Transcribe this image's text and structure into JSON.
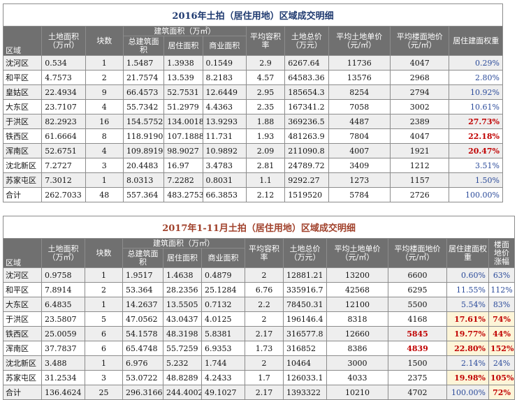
{
  "table1": {
    "title": "2016年土拍（居住用地）区域成交明细",
    "headers": {
      "area": "区域",
      "land_area": "土地面积（万㎡）",
      "blocks": "块数",
      "build_group": "建筑面积（万㎡）",
      "build_total": "总建筑面积",
      "build_res": "居住面积",
      "build_com": "商业面积",
      "far": "平均容积率",
      "total_price": "土地总价（万元）",
      "land_unit": "平均土地单价（元/㎡）",
      "floor_price": "平均楼面地价（元/㎡）",
      "weight": "居住建面权重"
    },
    "rows": [
      {
        "area": "沈河区",
        "land": "0.534",
        "blocks": "1",
        "total": "1.5487",
        "res": "1.3938",
        "com": "0.1549",
        "far": "2.9",
        "price": "6267.64",
        "unit": "11736",
        "floor": "4047",
        "weight": "0.29%",
        "hot": false
      },
      {
        "area": "和平区",
        "land": "4.7573",
        "blocks": "2",
        "total": "21.7574",
        "res": "13.539",
        "com": "8.2183",
        "far": "4.57",
        "price": "64583.36",
        "unit": "13576",
        "floor": "2968",
        "weight": "2.80%",
        "hot": false
      },
      {
        "area": "皇姑区",
        "land": "22.4934",
        "blocks": "9",
        "total": "66.4573",
        "res": "52.7531",
        "com": "12.6449",
        "far": "2.95",
        "price": "185654.3",
        "unit": "8254",
        "floor": "2794",
        "weight": "10.92%",
        "hot": false
      },
      {
        "area": "大东区",
        "land": "23.7107",
        "blocks": "4",
        "total": "55.7342",
        "res": "51.2979",
        "com": "4.4363",
        "far": "2.35",
        "price": "167341.2",
        "unit": "7058",
        "floor": "3002",
        "weight": "10.61%",
        "hot": false
      },
      {
        "area": "于洪区",
        "land": "82.2923",
        "blocks": "16",
        "total": "154.5752",
        "res": "134.0018",
        "com": "13.9293",
        "far": "1.88",
        "price": "369236.5",
        "unit": "4487",
        "floor": "2389",
        "weight": "27.73%",
        "hot": true
      },
      {
        "area": "铁西区",
        "land": "61.6664",
        "blocks": "8",
        "total": "118.9190",
        "res": "107.1888",
        "com": "11.731",
        "far": "1.93",
        "price": "481263.9",
        "unit": "7804",
        "floor": "4047",
        "weight": "22.18%",
        "hot": true
      },
      {
        "area": "浑南区",
        "land": "52.6751",
        "blocks": "4",
        "total": "109.8919",
        "res": "98.9027",
        "com": "10.9892",
        "far": "2.09",
        "price": "211090.8",
        "unit": "4007",
        "floor": "1921",
        "weight": "20.47%",
        "hot": true
      },
      {
        "area": "沈北新区",
        "land": "7.2727",
        "blocks": "3",
        "total": "20.4483",
        "res": "16.97",
        "com": "3.4783",
        "far": "2.81",
        "price": "24789.72",
        "unit": "3409",
        "floor": "1212",
        "weight": "3.51%",
        "hot": false
      },
      {
        "area": "苏家屯区",
        "land": "7.3012",
        "blocks": "1",
        "total": "8.0313",
        "res": "7.2282",
        "com": "0.8031",
        "far": "1.1",
        "price": "9292.27",
        "unit": "1273",
        "floor": "1157",
        "weight": "1.50%",
        "hot": false
      },
      {
        "area": "合计",
        "land": "262.7033",
        "blocks": "48",
        "total": "557.364",
        "res": "483.2753",
        "com": "66.3853",
        "far": "2.12",
        "price": "1519520",
        "unit": "5784",
        "floor": "2726",
        "weight": "100.00%",
        "hot": false
      }
    ]
  },
  "table2": {
    "title": "2017年1-11月土拍（居住用地）区域成交明细",
    "headers": {
      "area": "区域",
      "land_area": "土地面积（万㎡）",
      "blocks": "块数",
      "build_group": "建筑面积（万㎡）",
      "build_total": "总建筑面积",
      "build_res": "居住面积",
      "build_com": "商业面积",
      "far": "平均容积率",
      "total_price": "土地总价（万元）",
      "land_unit": "平均土地单价（元/㎡）",
      "floor_price": "平均楼面地价（元/㎡）",
      "weight": "居住建面权重",
      "change": "楼面地价涨幅"
    },
    "rows": [
      {
        "area": "沈河区",
        "land": "0.9758",
        "blocks": "1",
        "total": "1.9517",
        "res": "1.4638",
        "com": "0.4879",
        "far": "2",
        "price": "12881.21",
        "unit": "13200",
        "floor": "6600",
        "weight": "0.60%",
        "chg": "63%",
        "hot": false,
        "floor_hot": false
      },
      {
        "area": "和平区",
        "land": "7.8914",
        "blocks": "2",
        "total": "53.364",
        "res": "28.2356",
        "com": "25.1284",
        "far": "6.76",
        "price": "335916.7",
        "unit": "42568",
        "floor": "6295",
        "weight": "11.55%",
        "chg": "112%",
        "hot": false,
        "floor_hot": false
      },
      {
        "area": "大东区",
        "land": "6.4835",
        "blocks": "1",
        "total": "14.2637",
        "res": "13.5505",
        "com": "0.7132",
        "far": "2.2",
        "price": "78450.31",
        "unit": "12100",
        "floor": "5500",
        "weight": "5.54%",
        "chg": "83%",
        "hot": false,
        "floor_hot": false
      },
      {
        "area": "于洪区",
        "land": "23.5807",
        "blocks": "5",
        "total": "47.0562",
        "res": "43.0437",
        "com": "4.0125",
        "far": "2",
        "price": "196146.4",
        "unit": "8318",
        "floor": "4168",
        "weight": "17.61%",
        "chg": "74%",
        "hot": true,
        "floor_hot": false
      },
      {
        "area": "铁西区",
        "land": "25.0059",
        "blocks": "6",
        "total": "54.1578",
        "res": "48.3198",
        "com": "5.8381",
        "far": "2.17",
        "price": "316577.8",
        "unit": "12660",
        "floor": "5845",
        "weight": "19.77%",
        "chg": "44%",
        "hot": true,
        "floor_hot": true
      },
      {
        "area": "浑南区",
        "land": "37.7837",
        "blocks": "6",
        "total": "65.4748",
        "res": "55.7259",
        "com": "6.9353",
        "far": "1.73",
        "price": "316852",
        "unit": "8386",
        "floor": "4839",
        "weight": "22.80%",
        "chg": "152%",
        "hot": true,
        "floor_hot": true
      },
      {
        "area": "沈北新区",
        "land": "3.488",
        "blocks": "1",
        "total": "6.976",
        "res": "5.232",
        "com": "1.744",
        "far": "2",
        "price": "10464",
        "unit": "3000",
        "floor": "1500",
        "weight": "2.14%",
        "chg": "24%",
        "hot": false,
        "floor_hot": false
      },
      {
        "area": "苏家屯区",
        "land": "31.2534",
        "blocks": "3",
        "total": "53.0722",
        "res": "48.8289",
        "com": "4.2433",
        "far": "1.7",
        "price": "126033.1",
        "unit": "4033",
        "floor": "2375",
        "weight": "19.98%",
        "chg": "105%",
        "hot": true,
        "floor_hot": false
      },
      {
        "area": "合计",
        "land": "136.4624",
        "blocks": "25",
        "total": "296.3166",
        "res": "244.4002",
        "com": "49.1027",
        "far": "2.17",
        "price": "1393322",
        "unit": "10210",
        "floor": "4702",
        "weight": "100.00%",
        "chg": "72%",
        "hot": false,
        "floor_hot": false,
        "chg_hot": true
      }
    ]
  }
}
